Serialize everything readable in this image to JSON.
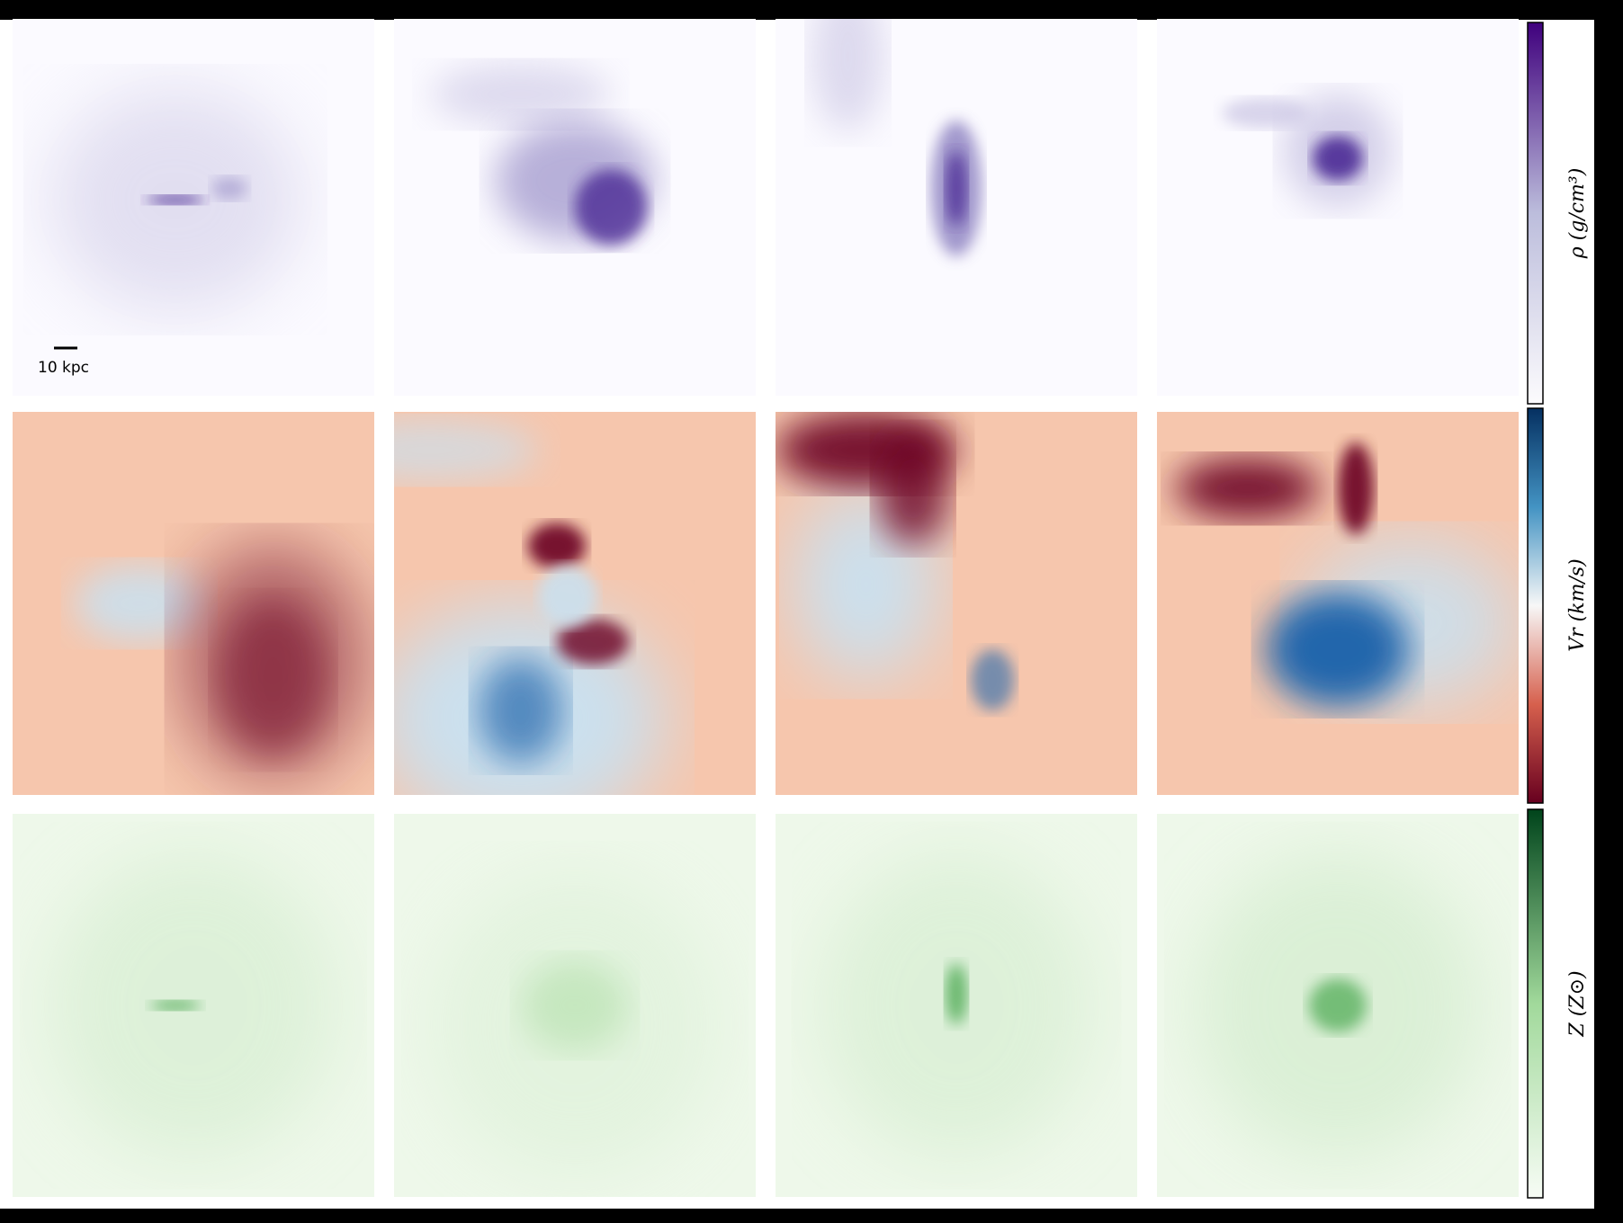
{
  "scale_bar": {
    "label": "10 kpc"
  },
  "colorbars": [
    {
      "label": "ρ (g/cm³)"
    },
    {
      "label": "Vr (km/s)"
    },
    {
      "label": "Z (Z⊙)"
    }
  ]
}
